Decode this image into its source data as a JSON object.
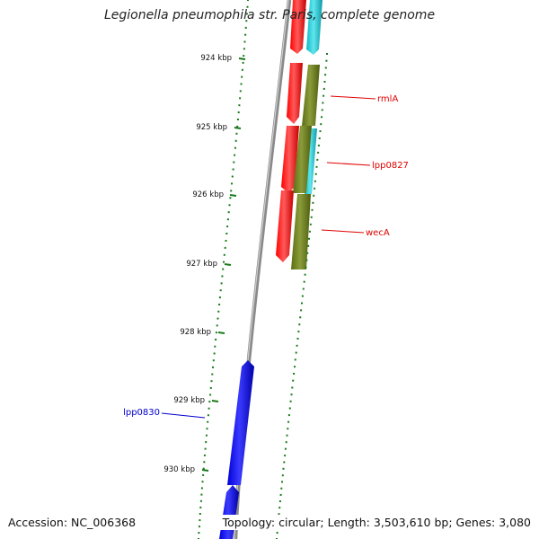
{
  "map": {
    "title": "Legionella pneumophila str. Paris, complete genome",
    "accession": "Accession: NC_006368",
    "topology": "Topology: circular; Length: 3,503,610 bp; Genes: 3,080",
    "ticks": [
      {
        "label": "924 kbp",
        "pos": 924
      },
      {
        "label": "925 kbp",
        "pos": 925
      },
      {
        "label": "926 kbp",
        "pos": 926
      },
      {
        "label": "927 kbp",
        "pos": 927
      },
      {
        "label": "928 kbp",
        "pos": 928
      },
      {
        "label": "929 kbp",
        "pos": 929
      },
      {
        "label": "930 kbp",
        "pos": 930
      }
    ],
    "gene_labels": [
      {
        "name": "rmlA",
        "color": "#e00000"
      },
      {
        "name": "lpp0827",
        "color": "#e00000"
      },
      {
        "name": "wecA",
        "color": "#e00000"
      },
      {
        "name": "lpp0830",
        "color": "#0000cc"
      }
    ],
    "colors": {
      "backbone": "#8a8a8a",
      "tick": "#1a7a1a",
      "red_gene": "#ff0000",
      "cyan_gene": "#1ec8d2",
      "olive_gene": "#6b7f1a",
      "blue_gene": "#0000ee"
    }
  }
}
